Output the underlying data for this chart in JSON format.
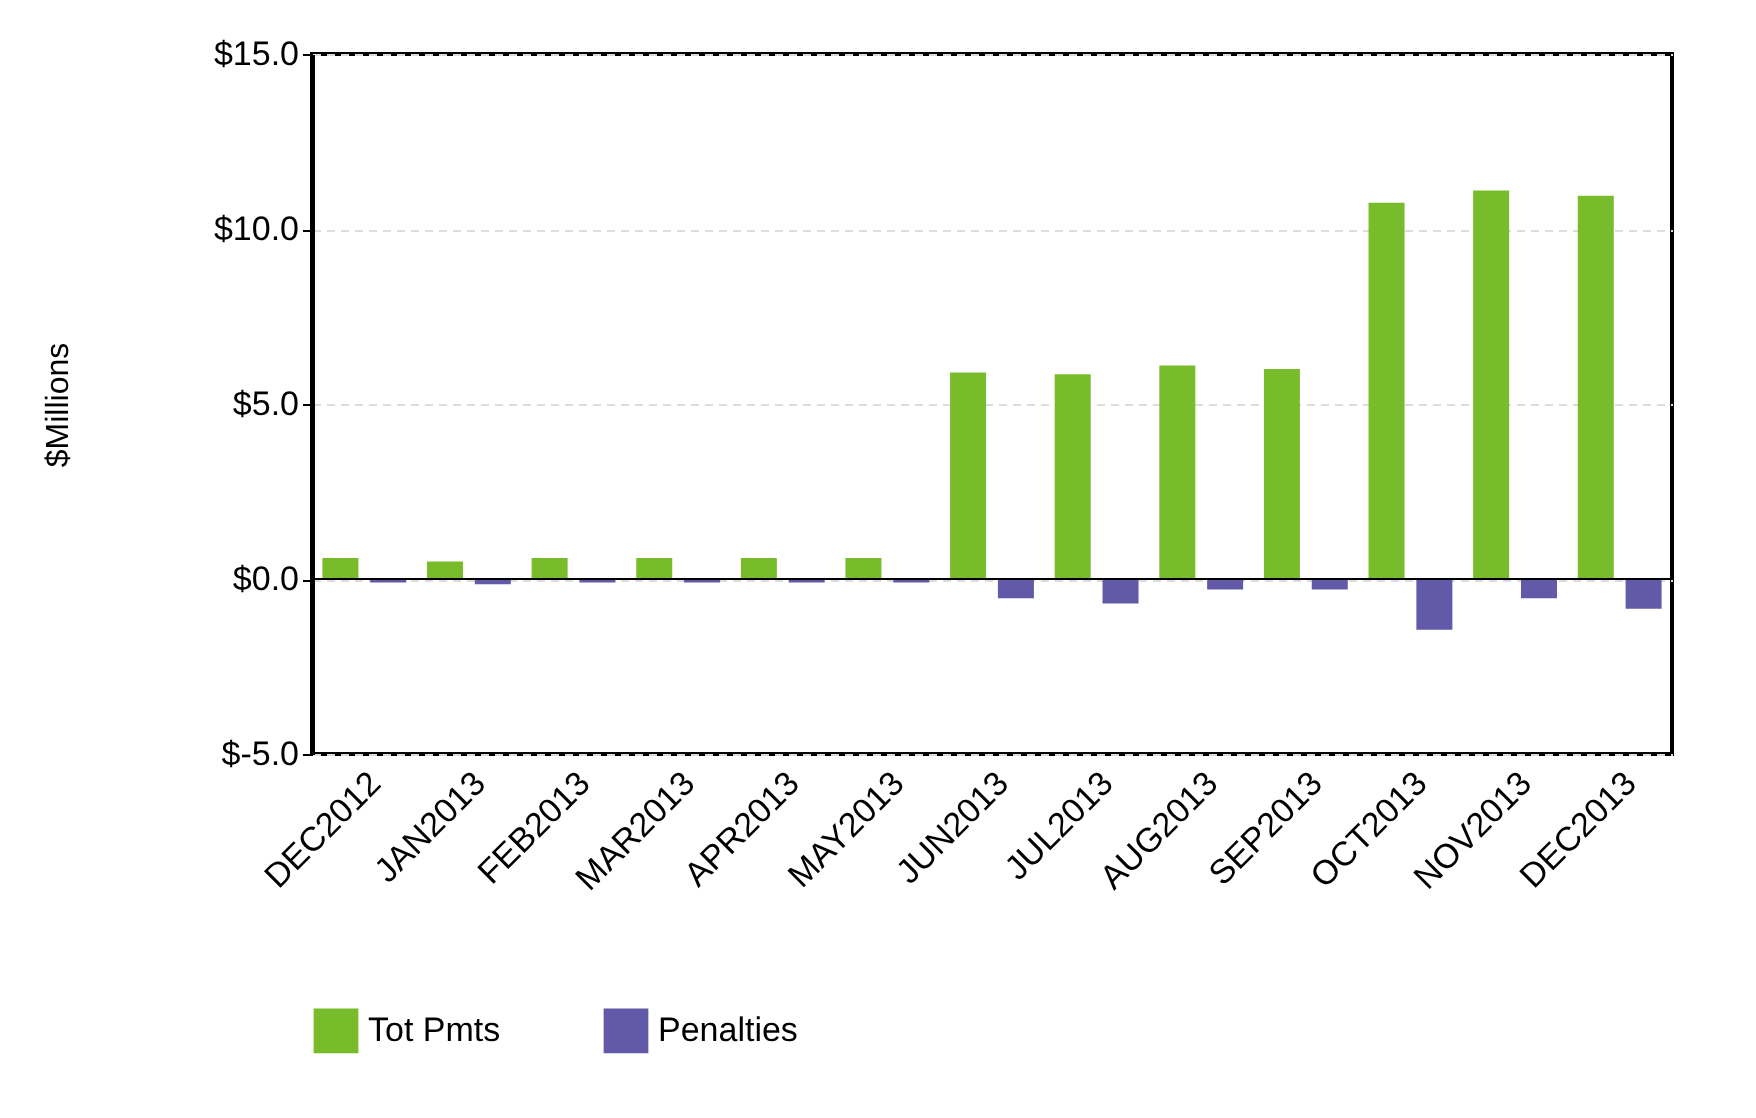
{
  "chart_data": {
    "type": "bar",
    "ylabel": "$Millions",
    "categories": [
      "DEC2012",
      "JAN2013",
      "FEB2013",
      "MAR2013",
      "APR2013",
      "MAY2013",
      "JUN2013",
      "JUL2013",
      "AUG2013",
      "SEP2013",
      "OCT2013",
      "NOV2013",
      "DEC2013"
    ],
    "series": [
      {
        "name": "Tot Pmts",
        "color": "#78bc2b",
        "values": [
          0.6,
          0.5,
          0.6,
          0.6,
          0.6,
          0.6,
          5.9,
          5.85,
          6.1,
          6.0,
          10.75,
          11.1,
          10.95
        ]
      },
      {
        "name": "Penalties",
        "color": "#625aa8",
        "values": [
          -0.1,
          -0.15,
          -0.1,
          -0.1,
          -0.1,
          -0.1,
          -0.55,
          -0.7,
          -0.3,
          -0.3,
          -1.45,
          -0.55,
          -0.85
        ]
      }
    ],
    "ylim": [
      -5,
      15
    ],
    "yticks": [
      {
        "value": -5,
        "label": "$-5.0"
      },
      {
        "value": 0,
        "label": "$0.0"
      },
      {
        "value": 5,
        "label": "$5.0"
      },
      {
        "value": 10,
        "label": "$10.0"
      },
      {
        "value": 15,
        "label": "$15.0"
      }
    ],
    "ref_lines": [
      {
        "axis": "y",
        "value": 0,
        "color": "#000000"
      }
    ],
    "grid": "y",
    "legend": "bottom"
  }
}
